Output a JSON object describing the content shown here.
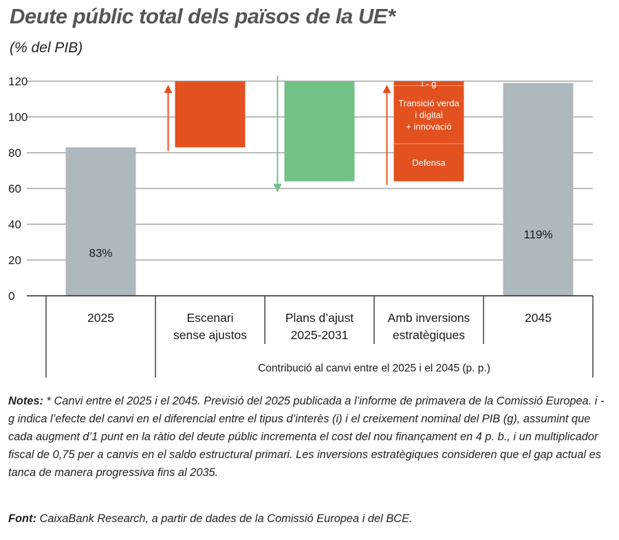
{
  "title": "Deute públic total dels països de la UE*",
  "subtitle": "(% del PIB)",
  "chart_data": {
    "type": "bar",
    "ylim": [
      0,
      120
    ],
    "yticks": [
      0,
      20,
      40,
      60,
      80,
      100,
      120
    ],
    "grid": true,
    "categories": [
      {
        "label": [
          "2025"
        ]
      },
      {
        "label": [
          "Escenari",
          "sense ajustos"
        ]
      },
      {
        "label": [
          "Plans d’ajust",
          "2025-2031"
        ]
      },
      {
        "label": [
          "Amb inversions",
          "estratègiques"
        ]
      },
      {
        "label": [
          "2045"
        ]
      }
    ],
    "group_label": "Contribució al canvi entre el 2025 i el 2045 (p. p.)",
    "bars": [
      {
        "category": "2025",
        "base": 0,
        "top": 83,
        "color": "#aeb8bd",
        "label": "83%"
      },
      {
        "category": "Escenari sense ajustos",
        "base": 83,
        "top": 120,
        "color": "#e2511f",
        "arrow": "up",
        "arrow_color": "#e2511f"
      },
      {
        "category": "Plans d’ajust 2025-2031",
        "base": 64,
        "top": 120,
        "color": "#72c187",
        "arrow": "down",
        "arrow_color": "#72c187"
      },
      {
        "category": "Amb inversions estratègiques",
        "base": 64,
        "top": 120,
        "color": "#e2511f",
        "arrow": "up",
        "arrow_color": "#e2511f",
        "segments": [
          {
            "label": [
              "Defensa"
            ],
            "from": 64,
            "to": 85
          },
          {
            "label": [
              "Transició verda",
              "i digital",
              "+ innovació"
            ],
            "from": 85,
            "to": 117.5
          },
          {
            "label": [
              "i - g"
            ],
            "from": 117.5,
            "to": 120
          }
        ]
      },
      {
        "category": "2045",
        "base": 0,
        "top": 119,
        "color": "#aeb8bd",
        "label": "119%"
      }
    ]
  },
  "notes": {
    "label": "Notes:",
    "text": " * Canvi entre el 2025 i el 2045. Previsió del 2025 publicada a l’informe de primavera de la Comissió Europea. i - g indica l’efecte del canvi en el diferencial entre el tipus d’interès (i) i el creixement nominal del PIB (g), assumint que cada augment d’1 punt en la ràtio del deute públic incrementa el cost del nou finançament en 4 p. b., i un multiplicador fiscal de 0,75 per a canvis en el saldo estructural primari. Les inversions estratègiques consideren que el gap actual es tanca de manera progressiva fins al 2035."
  },
  "source": {
    "label": "Font:",
    "text": " CaixaBank Research, a partir de dades de la Comissió Europea i del BCE."
  }
}
